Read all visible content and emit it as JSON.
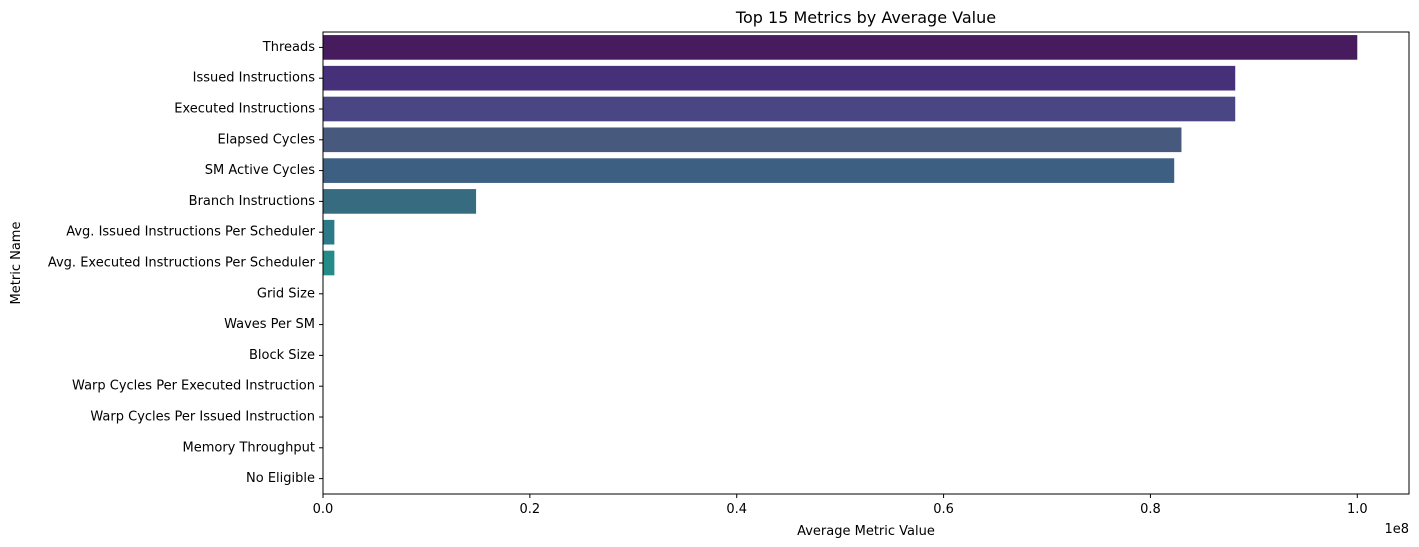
{
  "chart_data": {
    "type": "bar",
    "orientation": "horizontal",
    "title": "Top 15 Metrics by Average Value",
    "xlabel": "Average Metric Value",
    "ylabel": "Metric Name",
    "x_offset_label": "1e8",
    "xlim": [
      0,
      105000000
    ],
    "x_ticks": [
      0,
      20000000,
      40000000,
      60000000,
      80000000,
      100000000
    ],
    "x_tick_labels": [
      "0.0",
      "0.2",
      "0.4",
      "0.6",
      "0.8",
      "1.0"
    ],
    "grid": false,
    "categories": [
      "Threads",
      "Issued Instructions",
      "Executed Instructions",
      "Elapsed Cycles",
      "SM Active Cycles",
      "Branch Instructions",
      "Avg. Issued Instructions Per Scheduler",
      "Avg. Executed Instructions Per Scheduler",
      "Grid Size",
      "Waves Per SM",
      "Block Size",
      "Warp Cycles Per Executed Instruction",
      "Warp Cycles Per Issued Instruction",
      "Memory Throughput",
      "No Eligible"
    ],
    "values": [
      100000000,
      88200000,
      88200000,
      83000000,
      82300000,
      14800000,
      1100000,
      1100000,
      1000,
      100,
      100,
      20,
      20,
      50,
      50
    ],
    "colors": [
      "#481b5e",
      "#47307a",
      "#494683",
      "#475a7e",
      "#3d6082",
      "#366b80",
      "#2c7a88",
      "#248b88",
      "#2a9d83",
      "#35ac7d",
      "#5abb6e",
      "#7ec85e",
      "#a8d24a",
      "#cfda3c",
      "#f4e23d"
    ]
  }
}
